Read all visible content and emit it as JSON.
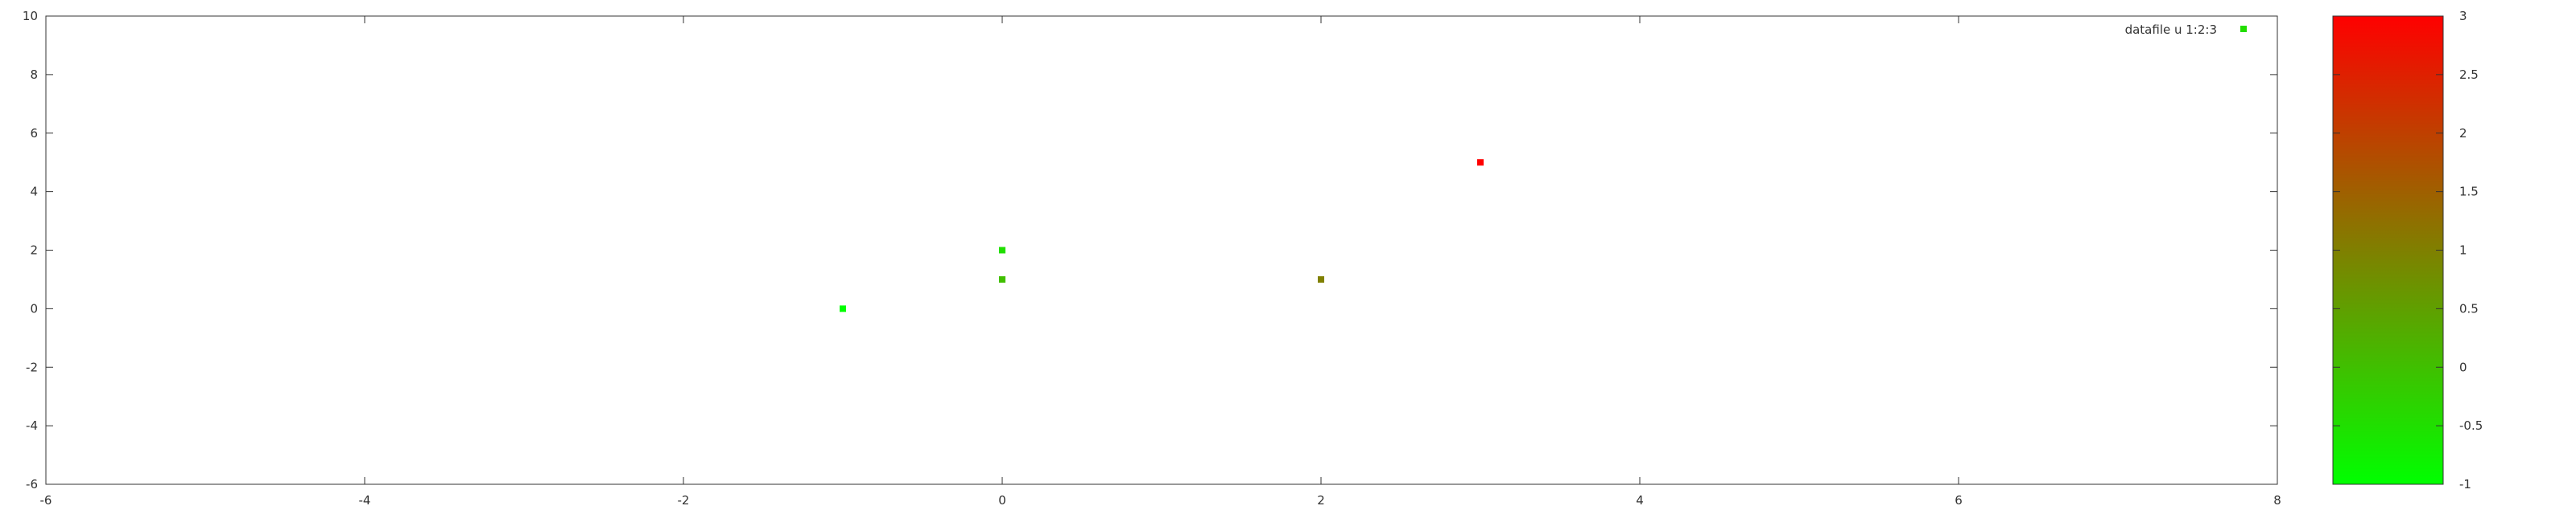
{
  "chart_data": {
    "type": "scatter",
    "title": "",
    "xlabel": "",
    "ylabel": "",
    "xlim": [
      -6,
      8
    ],
    "ylim": [
      -6,
      10
    ],
    "x_ticks": [
      -6,
      -4,
      -2,
      0,
      2,
      4,
      6,
      8
    ],
    "y_ticks": [
      -6,
      -4,
      -2,
      0,
      2,
      4,
      6,
      8,
      10
    ],
    "grid": false,
    "legend_position": "top-right",
    "series": [
      {
        "name": "datafile u 1:2:3",
        "points": [
          {
            "x": -1,
            "y": 0,
            "c": -1
          },
          {
            "x": 0,
            "y": 1,
            "c": 0
          },
          {
            "x": 0,
            "y": 2,
            "c": -0.5
          },
          {
            "x": 2,
            "y": 1,
            "c": 1
          },
          {
            "x": 3,
            "y": 5,
            "c": 3
          }
        ]
      }
    ],
    "colorbar": {
      "range": [
        -1,
        3
      ],
      "ticks": [
        -1,
        -0.5,
        0,
        0.5,
        1,
        1.5,
        2,
        2.5,
        3
      ],
      "colors": [
        "#00ff00",
        "#ff0000"
      ]
    },
    "legend_color": "#22dd00"
  }
}
